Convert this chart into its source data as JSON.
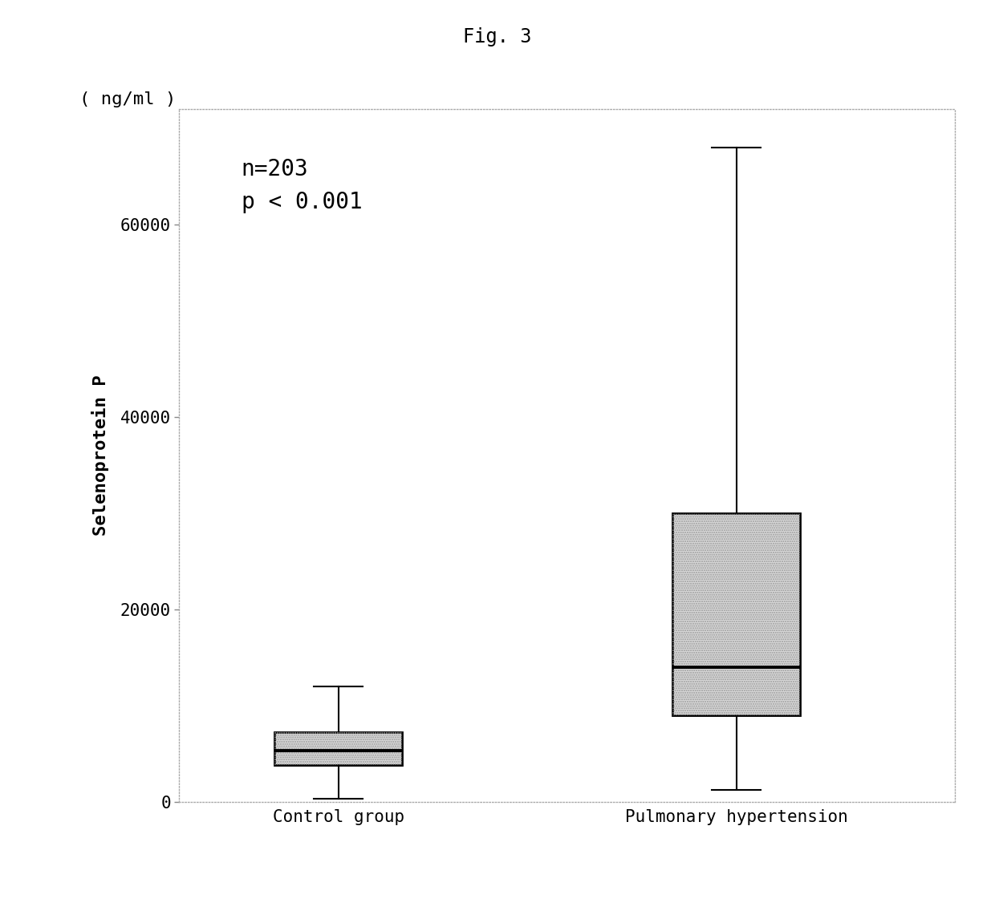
{
  "title": "Fig. 3",
  "ylabel": "Selenoprotein P",
  "yunits": "( ng/ml )",
  "annotation_line1": "n=203",
  "annotation_line2": "p < 0.001",
  "categories": [
    "Control group",
    "Pulmonary hypertension"
  ],
  "ylim": [
    0,
    72000
  ],
  "yticks": [
    0,
    20000,
    40000,
    60000
  ],
  "box_data": {
    "control": {
      "whisker_low": 300,
      "q1": 3800,
      "median": 5300,
      "q3": 7200,
      "whisker_high": 12000
    },
    "pulmonary": {
      "whisker_low": 1200,
      "q1": 9000,
      "median": 14000,
      "q3": 30000,
      "whisker_high": 68000
    }
  },
  "box_facecolor": "#d8d8d8",
  "box_edgecolor": "#000000",
  "whisker_color": "#000000",
  "median_color": "#000000",
  "background_color": "#ffffff",
  "box_width": 0.32,
  "title_fontsize": 17,
  "label_fontsize": 16,
  "tick_fontsize": 15,
  "annotation_fontsize": 20
}
